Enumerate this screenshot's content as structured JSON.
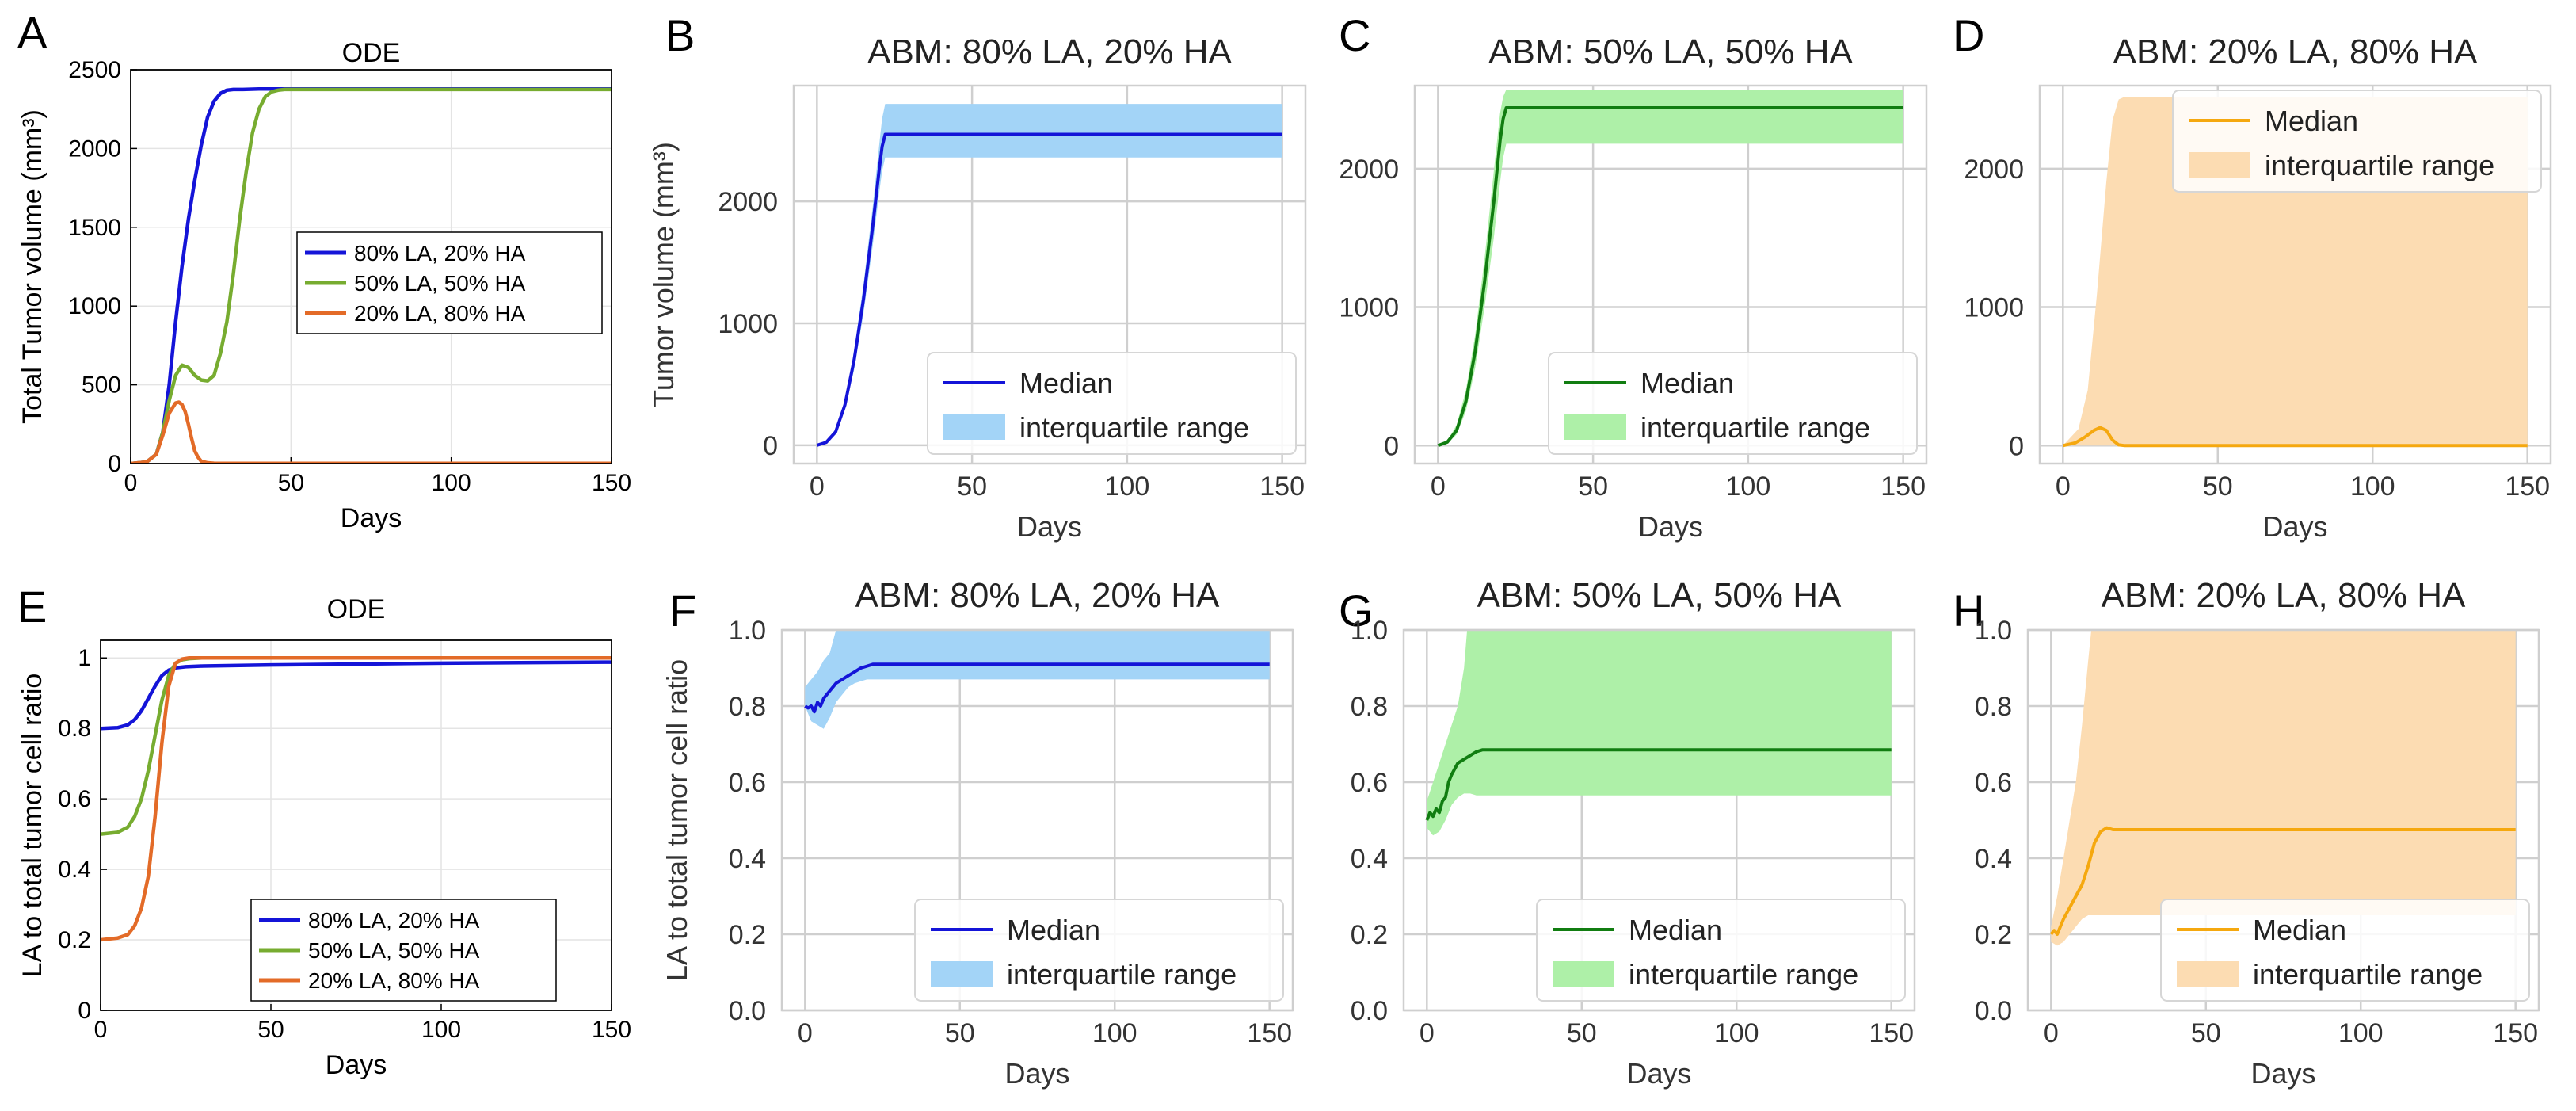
{
  "chart_data": [
    {
      "panel": "A",
      "type": "line",
      "style": "ode",
      "title": "ODE",
      "xlabel": "Days",
      "ylabel": "Total Tumor volume (mm³)",
      "xlim": [
        0,
        150
      ],
      "ylim": [
        0,
        2500
      ],
      "xticks": [
        0,
        50,
        100,
        150
      ],
      "yticks": [
        0,
        500,
        1000,
        1500,
        2000,
        2500
      ],
      "grid": true,
      "legend_position": "center-right",
      "series": [
        {
          "name": "80% LA, 20% HA",
          "color": "#1414d8",
          "x": [
            0,
            5,
            8,
            10,
            12,
            14,
            16,
            18,
            20,
            22,
            24,
            26,
            28,
            30,
            32,
            35,
            40,
            50,
            100,
            150
          ],
          "y": [
            0,
            10,
            60,
            200,
            500,
            900,
            1250,
            1550,
            1800,
            2020,
            2200,
            2300,
            2350,
            2370,
            2375,
            2375,
            2378,
            2378,
            2378,
            2378
          ]
        },
        {
          "name": "50% LA, 50% HA",
          "color": "#77ac30",
          "x": [
            0,
            5,
            8,
            10,
            12,
            14,
            16,
            18,
            20,
            22,
            24,
            26,
            28,
            30,
            32,
            34,
            36,
            38,
            40,
            42,
            44,
            46,
            48,
            50,
            60,
            100,
            150
          ],
          "y": [
            0,
            10,
            60,
            200,
            400,
            560,
            625,
            610,
            560,
            530,
            525,
            560,
            700,
            900,
            1200,
            1550,
            1850,
            2100,
            2250,
            2330,
            2360,
            2370,
            2375,
            2375,
            2375,
            2375,
            2375
          ]
        },
        {
          "name": "20% LA, 80% HA",
          "color": "#e36b28",
          "x": [
            0,
            5,
            8,
            10,
            12,
            14,
            15,
            16,
            17,
            18,
            19,
            20,
            21,
            22,
            24,
            26,
            30,
            50,
            100,
            150
          ],
          "y": [
            0,
            10,
            60,
            180,
            320,
            385,
            390,
            375,
            330,
            250,
            160,
            80,
            40,
            15,
            5,
            2,
            1,
            1,
            1,
            1
          ]
        }
      ]
    },
    {
      "panel": "B",
      "type": "line",
      "style": "abm",
      "title": "ABM: 80% LA, 20% HA",
      "xlabel": "Days",
      "ylabel": "Tumor volume (mm³)",
      "xlim": [
        -7.5,
        157.5
      ],
      "ylim": [
        -150,
        2950
      ],
      "xticks": [
        0,
        50,
        100,
        150
      ],
      "yticks": [
        0,
        1000,
        2000
      ],
      "grid": true,
      "legend_position": "bottom-right",
      "median_color": "#1414d8",
      "band_color": "#a3d4f7",
      "median": {
        "name": "Median",
        "x": [
          0,
          3,
          6,
          9,
          12,
          15,
          18,
          20,
          21,
          22,
          150
        ],
        "y": [
          0,
          25,
          110,
          330,
          700,
          1200,
          1800,
          2250,
          2450,
          2550,
          2550
        ]
      },
      "band": {
        "name": "interquartile range",
        "x": [
          0,
          3,
          6,
          9,
          12,
          15,
          18,
          20,
          21,
          22,
          150
        ],
        "lower": [
          0,
          20,
          90,
          290,
          620,
          1080,
          1640,
          2060,
          2250,
          2360,
          2360
        ],
        "upper": [
          0,
          30,
          130,
          370,
          780,
          1320,
          1960,
          2450,
          2680,
          2800,
          2800
        ]
      }
    },
    {
      "panel": "C",
      "type": "line",
      "style": "abm",
      "title": "ABM: 50% LA, 50% HA",
      "xlabel": "Days",
      "ylabel": "",
      "xlim": [
        -7.5,
        157.5
      ],
      "ylim": [
        -130,
        2600
      ],
      "xticks": [
        0,
        50,
        100,
        150
      ],
      "yticks": [
        0,
        1000,
        2000
      ],
      "grid": true,
      "legend_position": "bottom-right",
      "median_color": "#117d11",
      "band_color": "#aef0a8",
      "median": {
        "name": "Median",
        "x": [
          0,
          3,
          6,
          9,
          12,
          15,
          18,
          20,
          21,
          22,
          150
        ],
        "y": [
          0,
          25,
          110,
          320,
          680,
          1180,
          1760,
          2200,
          2360,
          2440,
          2440
        ]
      },
      "band": {
        "name": "interquartile range",
        "x": [
          0,
          3,
          6,
          9,
          12,
          15,
          18,
          20,
          21,
          22,
          150
        ],
        "lower": [
          0,
          15,
          80,
          250,
          560,
          1000,
          1500,
          1900,
          2080,
          2180,
          2180
        ],
        "upper": [
          0,
          35,
          150,
          400,
          800,
          1350,
          1980,
          2400,
          2520,
          2570,
          2570
        ]
      }
    },
    {
      "panel": "D",
      "type": "line",
      "style": "abm",
      "title": "ABM: 20% LA, 80% HA",
      "xlabel": "Days",
      "ylabel": "",
      "xlim": [
        -7.5,
        157.5
      ],
      "ylim": [
        -130,
        2600
      ],
      "xticks": [
        0,
        50,
        100,
        150
      ],
      "yticks": [
        0,
        1000,
        2000
      ],
      "grid": true,
      "legend_position": "top-right",
      "median_color": "#f5a80f",
      "band_color": "#fcdcb2",
      "median": {
        "name": "Median",
        "x": [
          0,
          4,
          7,
          10,
          12,
          14,
          16,
          18,
          20,
          150
        ],
        "y": [
          0,
          20,
          60,
          110,
          130,
          110,
          40,
          5,
          0,
          0
        ]
      },
      "band": {
        "name": "interquartile range",
        "x": [
          0,
          5,
          8,
          11,
          14,
          16,
          18,
          20,
          150
        ],
        "lower": [
          0,
          0,
          0,
          0,
          0,
          0,
          0,
          0,
          0
        ],
        "upper": [
          0,
          120,
          400,
          1100,
          1900,
          2350,
          2500,
          2520,
          2520
        ]
      }
    },
    {
      "panel": "E",
      "type": "line",
      "style": "ode",
      "title": "ODE",
      "xlabel": "Days",
      "ylabel": "LA to total tumor cell ratio",
      "xlim": [
        0,
        150
      ],
      "ylim": [
        0,
        1.05
      ],
      "xticks": [
        0,
        50,
        100,
        150
      ],
      "yticks": [
        0,
        0.2,
        0.4,
        0.6,
        0.8,
        1
      ],
      "ytick_labels": [
        "0",
        "0.2",
        "0.4",
        "0.6",
        "0.8",
        "1"
      ],
      "grid": true,
      "legend_position": "bottom-center",
      "series": [
        {
          "name": "80% LA, 20% HA",
          "color": "#1414d8",
          "x": [
            0,
            5,
            8,
            10,
            12,
            14,
            16,
            18,
            20,
            22,
            25,
            30,
            50,
            100,
            150
          ],
          "y": [
            0.8,
            0.802,
            0.81,
            0.825,
            0.85,
            0.885,
            0.92,
            0.95,
            0.965,
            0.972,
            0.975,
            0.977,
            0.98,
            0.985,
            0.988
          ]
        },
        {
          "name": "50% LA, 50% HA",
          "color": "#77ac30",
          "x": [
            0,
            5,
            8,
            10,
            12,
            14,
            16,
            18,
            20,
            22,
            24,
            26,
            30,
            50,
            100,
            150
          ],
          "y": [
            0.5,
            0.505,
            0.52,
            0.55,
            0.6,
            0.68,
            0.78,
            0.88,
            0.95,
            0.985,
            0.995,
            0.998,
            1.0,
            1.0,
            1.0,
            1.0
          ]
        },
        {
          "name": "20% LA, 80% HA",
          "color": "#e36b28",
          "x": [
            0,
            5,
            8,
            10,
            12,
            14,
            16,
            18,
            20,
            22,
            24,
            26,
            30,
            50,
            100,
            150
          ],
          "y": [
            0.2,
            0.205,
            0.215,
            0.24,
            0.29,
            0.38,
            0.55,
            0.76,
            0.92,
            0.985,
            0.997,
            1.0,
            1.0,
            1.0,
            1.0,
            1.0
          ]
        }
      ]
    },
    {
      "panel": "F",
      "type": "line",
      "style": "abm",
      "title": "ABM: 80% LA, 20% HA",
      "xlabel": "Days",
      "ylabel": "LA to total tumor cell ratio",
      "xlim": [
        -7.5,
        157.5
      ],
      "ylim": [
        0,
        1.0
      ],
      "xticks": [
        0,
        50,
        100,
        150
      ],
      "yticks": [
        0,
        0.2,
        0.4,
        0.6,
        0.8,
        1.0
      ],
      "ytick_labels": [
        "0.0",
        "0.2",
        "0.4",
        "0.6",
        "0.8",
        "1.0"
      ],
      "grid": true,
      "legend_position": "bottom-right",
      "median_color": "#1414d8",
      "band_color": "#a3d4f7",
      "median": {
        "name": "Median",
        "x": [
          0,
          1,
          2,
          3,
          4,
          5,
          6,
          8,
          10,
          12,
          14,
          16,
          18,
          20,
          22,
          150
        ],
        "y": [
          0.8,
          0.795,
          0.8,
          0.785,
          0.81,
          0.8,
          0.82,
          0.84,
          0.86,
          0.87,
          0.88,
          0.89,
          0.9,
          0.905,
          0.91,
          0.91
        ]
      },
      "band": {
        "name": "interquartile range",
        "x": [
          0,
          2,
          4,
          6,
          8,
          10,
          12,
          14,
          16,
          18,
          20,
          22,
          150
        ],
        "lower": [
          0.8,
          0.76,
          0.75,
          0.74,
          0.77,
          0.81,
          0.83,
          0.85,
          0.86,
          0.865,
          0.87,
          0.87,
          0.87
        ],
        "upper": [
          0.85,
          0.87,
          0.89,
          0.92,
          0.94,
          1.0,
          1.0,
          1.0,
          1.0,
          1.0,
          1.0,
          1.0,
          1.0
        ]
      }
    },
    {
      "panel": "G",
      "type": "line",
      "style": "abm",
      "title": "ABM: 50% LA, 50% HA",
      "xlabel": "Days",
      "ylabel": "",
      "xlim": [
        -7.5,
        157.5
      ],
      "ylim": [
        0,
        1.0
      ],
      "xticks": [
        0,
        50,
        100,
        150
      ],
      "yticks": [
        0,
        0.2,
        0.4,
        0.6,
        0.8,
        1.0
      ],
      "ytick_labels": [
        "0.0",
        "0.2",
        "0.4",
        "0.6",
        "0.8",
        "1.0"
      ],
      "grid": true,
      "legend_position": "bottom-right",
      "median_color": "#117d11",
      "band_color": "#aef0a8",
      "median": {
        "name": "Median",
        "x": [
          0,
          1,
          2,
          3,
          4,
          5,
          6,
          7,
          8,
          10,
          12,
          14,
          16,
          18,
          20,
          150
        ],
        "y": [
          0.5,
          0.52,
          0.51,
          0.53,
          0.52,
          0.55,
          0.56,
          0.6,
          0.62,
          0.65,
          0.66,
          0.67,
          0.68,
          0.685,
          0.685,
          0.685
        ]
      },
      "band": {
        "name": "interquartile range",
        "x": [
          0,
          2,
          4,
          6,
          8,
          10,
          12,
          13,
          14,
          16,
          18,
          20,
          150
        ],
        "lower": [
          0.48,
          0.46,
          0.47,
          0.5,
          0.54,
          0.56,
          0.57,
          0.57,
          0.57,
          0.565,
          0.565,
          0.565,
          0.565
        ],
        "upper": [
          0.55,
          0.6,
          0.65,
          0.7,
          0.75,
          0.8,
          0.9,
          1.0,
          1.0,
          1.0,
          1.0,
          1.0,
          1.0
        ]
      }
    },
    {
      "panel": "H",
      "type": "line",
      "style": "abm",
      "title": "ABM: 20% LA, 80% HA",
      "xlabel": "Days",
      "ylabel": "",
      "xlim": [
        -7.5,
        157.5
      ],
      "ylim": [
        0,
        1.0
      ],
      "xticks": [
        0,
        50,
        100,
        150
      ],
      "yticks": [
        0,
        0.2,
        0.4,
        0.6,
        0.8,
        1.0
      ],
      "ytick_labels": [
        "0.0",
        "0.2",
        "0.4",
        "0.6",
        "0.8",
        "1.0"
      ],
      "grid": true,
      "legend_position": "bottom-right",
      "median_color": "#f5a80f",
      "band_color": "#fcdcb2",
      "median": {
        "name": "Median",
        "x": [
          0,
          1,
          2,
          3,
          4,
          6,
          8,
          10,
          12,
          14,
          16,
          18,
          20,
          22,
          150
        ],
        "y": [
          0.2,
          0.21,
          0.2,
          0.22,
          0.24,
          0.27,
          0.3,
          0.33,
          0.38,
          0.44,
          0.47,
          0.48,
          0.475,
          0.475,
          0.475
        ]
      },
      "band": {
        "name": "interquartile range",
        "x": [
          0,
          2,
          4,
          6,
          8,
          10,
          12,
          13,
          14,
          16,
          18,
          20,
          150
        ],
        "lower": [
          0.18,
          0.17,
          0.18,
          0.2,
          0.22,
          0.24,
          0.25,
          0.25,
          0.25,
          0.25,
          0.25,
          0.25,
          0.25
        ],
        "upper": [
          0.22,
          0.3,
          0.4,
          0.5,
          0.6,
          0.75,
          0.92,
          1.0,
          1.0,
          1.0,
          1.0,
          1.0,
          1.0
        ]
      }
    }
  ]
}
